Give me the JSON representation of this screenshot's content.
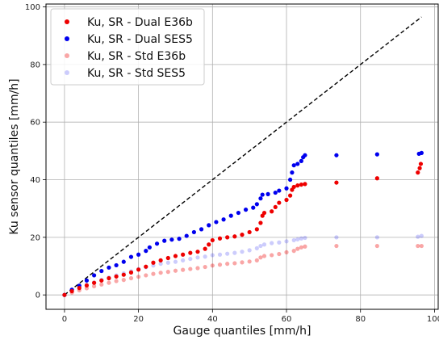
{
  "chart_data": {
    "type": "scatter",
    "title": "",
    "xlabel": "Gauge quantiles [mm/h]",
    "ylabel": "Ku sensor quantiles [mm/h]",
    "xlim": [
      -5,
      101
    ],
    "ylim": [
      -5,
      101
    ],
    "xticks": [
      0,
      20,
      40,
      60,
      80,
      100
    ],
    "yticks": [
      0,
      20,
      40,
      60,
      80,
      100
    ],
    "grid": true,
    "legend_position": "top-left",
    "reference_line": {
      "style": "dashed",
      "color": "#000000",
      "x": [
        0,
        96.5
      ],
      "y": [
        0,
        96.5
      ]
    },
    "series": [
      {
        "name": "Ku, SR - Dual E36b",
        "color": "#ee0000",
        "alpha": 1.0,
        "points": [
          [
            0,
            0
          ],
          [
            2,
            1.3
          ],
          [
            4,
            2.4
          ],
          [
            6,
            3.3
          ],
          [
            8,
            4.2
          ],
          [
            10,
            5.0
          ],
          [
            12,
            5.8
          ],
          [
            14,
            6.4
          ],
          [
            16,
            7.0
          ],
          [
            18,
            7.8
          ],
          [
            20,
            8.8
          ],
          [
            22,
            9.8
          ],
          [
            24,
            11.2
          ],
          [
            26,
            12.0
          ],
          [
            28,
            12.8
          ],
          [
            30,
            13.5
          ],
          [
            32,
            14.0
          ],
          [
            34,
            14.6
          ],
          [
            36,
            15.0
          ],
          [
            38,
            16.0
          ],
          [
            39,
            17.5
          ],
          [
            40,
            19.0
          ],
          [
            42,
            19.6
          ],
          [
            44,
            20.0
          ],
          [
            46,
            20.3
          ],
          [
            48,
            20.9
          ],
          [
            50,
            21.8
          ],
          [
            52,
            22.8
          ],
          [
            53,
            25.0
          ],
          [
            53.5,
            27.5
          ],
          [
            54,
            28.5
          ],
          [
            56,
            29.0
          ],
          [
            57,
            30.5
          ],
          [
            58,
            32.0
          ],
          [
            60,
            33.0
          ],
          [
            61,
            34.5
          ],
          [
            61.5,
            36.5
          ],
          [
            62,
            37.5
          ],
          [
            63,
            38.0
          ],
          [
            64,
            38.3
          ],
          [
            65,
            38.5
          ],
          [
            73.5,
            39.0
          ],
          [
            84.5,
            40.5
          ],
          [
            95.5,
            42.5
          ],
          [
            96,
            44.0
          ],
          [
            96.3,
            45.5
          ]
        ]
      },
      {
        "name": "Ku, SR - Dual SES5",
        "color": "#0000ee",
        "alpha": 1.0,
        "points": [
          [
            0,
            0
          ],
          [
            2,
            1.8
          ],
          [
            4,
            3.2
          ],
          [
            6,
            5.0
          ],
          [
            8,
            6.8
          ],
          [
            10,
            8.3
          ],
          [
            12,
            9.5
          ],
          [
            14,
            10.3
          ],
          [
            16,
            11.5
          ],
          [
            18,
            13.2
          ],
          [
            20,
            14.0
          ],
          [
            22,
            15.3
          ],
          [
            23,
            16.5
          ],
          [
            25,
            17.8
          ],
          [
            27,
            18.8
          ],
          [
            29,
            19.2
          ],
          [
            31,
            19.5
          ],
          [
            33,
            20.5
          ],
          [
            35,
            21.8
          ],
          [
            37,
            22.8
          ],
          [
            39,
            24.2
          ],
          [
            41,
            25.3
          ],
          [
            43,
            26.2
          ],
          [
            45,
            27.5
          ],
          [
            47,
            28.5
          ],
          [
            49,
            29.6
          ],
          [
            51,
            30.3
          ],
          [
            52,
            31.5
          ],
          [
            53,
            33.5
          ],
          [
            53.5,
            34.8
          ],
          [
            55,
            35.0
          ],
          [
            57,
            35.5
          ],
          [
            58,
            36.2
          ],
          [
            60,
            37.0
          ],
          [
            61,
            40.0
          ],
          [
            61.5,
            42.5
          ],
          [
            62,
            45.0
          ],
          [
            63,
            45.5
          ],
          [
            64,
            46.5
          ],
          [
            64.5,
            47.8
          ],
          [
            65,
            48.5
          ],
          [
            73.5,
            48.5
          ],
          [
            84.5,
            48.8
          ],
          [
            95.8,
            49.0
          ],
          [
            96.5,
            49.3
          ]
        ]
      },
      {
        "name": "Ku, SR - Std E36b",
        "color": "#ee0000",
        "alpha": 0.35,
        "points": [
          [
            0,
            0
          ],
          [
            2,
            0.8
          ],
          [
            4,
            1.6
          ],
          [
            6,
            2.3
          ],
          [
            8,
            3.0
          ],
          [
            10,
            3.6
          ],
          [
            12,
            4.2
          ],
          [
            14,
            4.8
          ],
          [
            16,
            5.2
          ],
          [
            18,
            5.8
          ],
          [
            20,
            6.3
          ],
          [
            22,
            6.8
          ],
          [
            24,
            7.3
          ],
          [
            26,
            7.7
          ],
          [
            28,
            8.0
          ],
          [
            30,
            8.4
          ],
          [
            32,
            8.7
          ],
          [
            34,
            9.0
          ],
          [
            36,
            9.3
          ],
          [
            38,
            9.7
          ],
          [
            40,
            10.2
          ],
          [
            42,
            10.5
          ],
          [
            44,
            10.8
          ],
          [
            46,
            11.0
          ],
          [
            48,
            11.3
          ],
          [
            50,
            11.6
          ],
          [
            52,
            12.0
          ],
          [
            53,
            13.0
          ],
          [
            54,
            13.5
          ],
          [
            56,
            13.8
          ],
          [
            58,
            14.2
          ],
          [
            60,
            14.8
          ],
          [
            62,
            15.3
          ],
          [
            63,
            16.0
          ],
          [
            64,
            16.5
          ],
          [
            65,
            16.8
          ],
          [
            73.5,
            17.0
          ],
          [
            84.5,
            17.0
          ],
          [
            95.5,
            17.0
          ],
          [
            96.5,
            17.0
          ]
        ]
      },
      {
        "name": "Ku, SR - Std SES5",
        "color": "#0000ee",
        "alpha": 0.2,
        "points": [
          [
            0,
            0
          ],
          [
            2,
            1.5
          ],
          [
            4,
            2.5
          ],
          [
            6,
            3.5
          ],
          [
            8,
            4.3
          ],
          [
            10,
            5.2
          ],
          [
            12,
            6.0
          ],
          [
            14,
            6.8
          ],
          [
            16,
            7.5
          ],
          [
            18,
            8.2
          ],
          [
            20,
            9.0
          ],
          [
            22,
            9.6
          ],
          [
            24,
            10.2
          ],
          [
            26,
            10.8
          ],
          [
            28,
            11.2
          ],
          [
            30,
            11.5
          ],
          [
            32,
            12.0
          ],
          [
            34,
            12.5
          ],
          [
            36,
            13.0
          ],
          [
            38,
            13.3
          ],
          [
            40,
            13.8
          ],
          [
            42,
            14.0
          ],
          [
            44,
            14.3
          ],
          [
            46,
            14.6
          ],
          [
            48,
            15.0
          ],
          [
            50,
            15.5
          ],
          [
            52,
            16.2
          ],
          [
            53,
            17.0
          ],
          [
            54,
            17.5
          ],
          [
            56,
            18.0
          ],
          [
            58,
            18.2
          ],
          [
            60,
            18.6
          ],
          [
            62,
            19.0
          ],
          [
            63,
            19.3
          ],
          [
            64,
            19.6
          ],
          [
            65,
            19.8
          ],
          [
            73.5,
            20.0
          ],
          [
            84.5,
            20.0
          ],
          [
            95.5,
            20.2
          ],
          [
            96.5,
            20.5
          ]
        ]
      }
    ]
  }
}
